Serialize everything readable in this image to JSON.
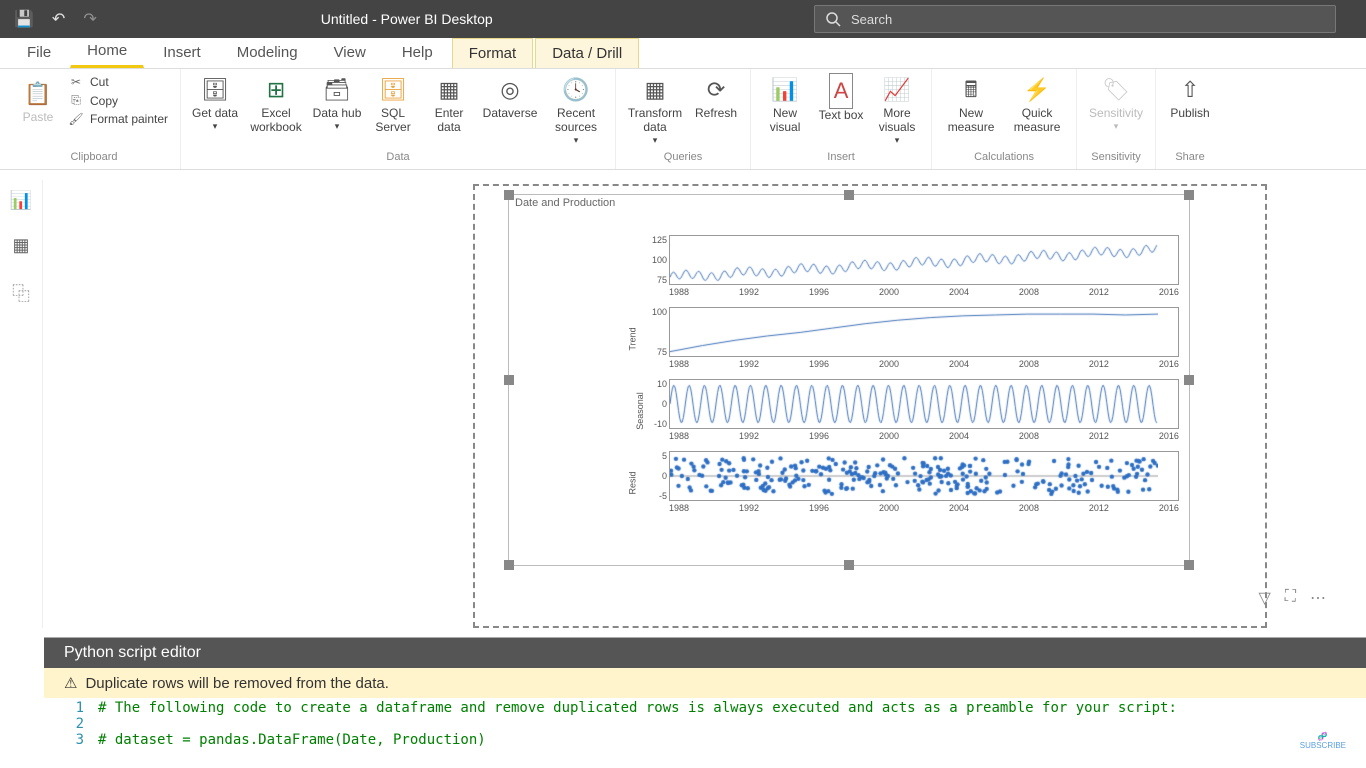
{
  "title": "Untitled - Power BI Desktop",
  "search_placeholder": "Search",
  "tabs": [
    "File",
    "Home",
    "Insert",
    "Modeling",
    "View",
    "Help",
    "Format",
    "Data / Drill"
  ],
  "active_tab_index": 1,
  "context_tab_indices": [
    6,
    7
  ],
  "clipboard": {
    "paste": "Paste",
    "cut": "Cut",
    "copy": "Copy",
    "fmt": "Format painter",
    "group": "Clipboard"
  },
  "data_grp": {
    "get": "Get data",
    "excel": "Excel workbook",
    "hub": "Data hub",
    "sql": "SQL Server",
    "enter": "Enter data",
    "dv": "Dataverse",
    "recent": "Recent sources",
    "group": "Data"
  },
  "queries": {
    "transform": "Transform data",
    "refresh": "Refresh",
    "group": "Queries"
  },
  "insert": {
    "visual": "New visual",
    "text": "Text box",
    "more": "More visuals",
    "group": "Insert"
  },
  "calc": {
    "newm": "New measure",
    "quick": "Quick measure",
    "group": "Calculations"
  },
  "sens": {
    "label": "Sensitivity",
    "group": "Sensitivity"
  },
  "share": {
    "publish": "Publish",
    "group": "Share"
  },
  "visual_title": "Date and Production",
  "xticks": [
    "1988",
    "1992",
    "1996",
    "2000",
    "2004",
    "2008",
    "2012",
    "2016"
  ],
  "subplots": [
    {
      "ylabel": "",
      "yticks": [
        "125",
        "100",
        "75"
      ],
      "type": "line-noisy",
      "ylim": [
        60,
        130
      ],
      "trend": [
        70,
        110
      ],
      "noise": 6,
      "color": "#3b6fb6"
    },
    {
      "ylabel": "Trend",
      "yticks": [
        "100",
        "75"
      ],
      "type": "line",
      "ylim": [
        60,
        115
      ],
      "data": [
        65,
        72,
        78,
        83,
        87,
        92,
        97,
        101,
        104,
        106,
        107,
        108,
        108,
        108,
        107,
        108
      ],
      "color": "#3b6fb6"
    },
    {
      "ylabel": "Seasonal",
      "yticks": [
        "10",
        "0",
        "-10"
      ],
      "type": "seasonal",
      "ylim": [
        -14,
        14
      ],
      "amp": 11,
      "color": "#3b6fb6"
    },
    {
      "ylabel": "Resid",
      "yticks": [
        "5",
        "0",
        "-5"
      ],
      "type": "scatter",
      "ylim": [
        -8,
        8
      ],
      "color": "#2e6fc4"
    }
  ],
  "py": {
    "title": "Python script editor",
    "warn": "Duplicate rows will be removed from the data.",
    "lines": [
      "# The following code to create a dataframe and remove duplicated rows is always executed and acts as a preamble for your script:",
      "",
      "# dataset = pandas.DataFrame(Date, Production)"
    ]
  }
}
